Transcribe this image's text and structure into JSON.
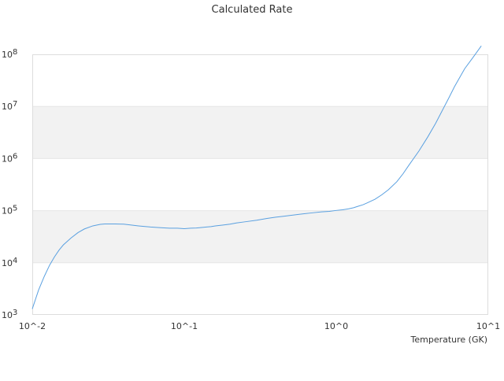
{
  "chart_data": {
    "type": "line",
    "title": "Calculated Rate",
    "xlabel": "Temperature (GK)",
    "ylabel": "",
    "x_scale": "log",
    "y_scale": "log",
    "xlim": [
      0.01,
      10
    ],
    "ylim": [
      1000,
      100000000
    ],
    "x_ticks": [
      {
        "value": 0.01,
        "label": "10^-2"
      },
      {
        "value": 0.1,
        "label": "10^-1"
      },
      {
        "value": 1,
        "label": "10^0"
      },
      {
        "value": 10,
        "label": "10^1"
      }
    ],
    "y_ticks": [
      {
        "value": 1000,
        "base": "10",
        "exp": "3"
      },
      {
        "value": 10000,
        "base": "10",
        "exp": "4"
      },
      {
        "value": 100000,
        "base": "10",
        "exp": "5"
      },
      {
        "value": 1000000,
        "base": "10",
        "exp": "6"
      },
      {
        "value": 10000000,
        "base": "10",
        "exp": "7"
      },
      {
        "value": 100000000,
        "base": "10",
        "exp": "8"
      }
    ],
    "grid": false,
    "alternating_bands": true,
    "legend": "none",
    "colors": {
      "line": "#5aa0e0",
      "band": "#f2f2f2",
      "plot_border": "#dddddd",
      "axis_text": "#333333"
    },
    "series": [
      {
        "x": [
          0.01,
          0.011,
          0.012,
          0.013,
          0.014,
          0.015,
          0.016,
          0.018,
          0.02,
          0.022,
          0.025,
          0.028,
          0.03,
          0.035,
          0.04,
          0.05,
          0.06,
          0.07,
          0.08,
          0.09,
          0.1,
          0.11,
          0.12,
          0.13,
          0.14,
          0.15,
          0.16,
          0.18,
          0.2,
          0.22,
          0.25,
          0.3,
          0.35,
          0.4,
          0.45,
          0.5,
          0.6,
          0.7,
          0.8,
          0.9,
          1.0,
          1.1,
          1.2,
          1.3,
          1.4,
          1.5,
          1.6,
          1.8,
          2.0,
          2.2,
          2.5,
          2.75,
          3.0,
          3.5,
          4.0,
          4.5,
          5.0,
          5.5,
          6.0,
          7.0,
          8.0,
          9.0
        ],
        "y": [
          1300,
          3000,
          5500,
          9000,
          13000,
          17500,
          22000,
          30000,
          38000,
          44500,
          51000,
          54500,
          55500,
          55500,
          55000,
          51000,
          48500,
          47000,
          46000,
          46000,
          45000,
          46000,
          46500,
          47500,
          48500,
          49500,
          51000,
          53000,
          55000,
          58000,
          61000,
          65500,
          71000,
          75000,
          78000,
          81000,
          86500,
          91000,
          95000,
          97000,
          101000,
          104000,
          108000,
          114000,
          122000,
          130000,
          141000,
          166000,
          203000,
          251000,
          358000,
          510000,
          740000,
          1400000,
          2600000,
          4700000,
          8500000,
          14500000,
          24000000,
          53000000,
          90000000,
          145000000
        ]
      }
    ]
  }
}
